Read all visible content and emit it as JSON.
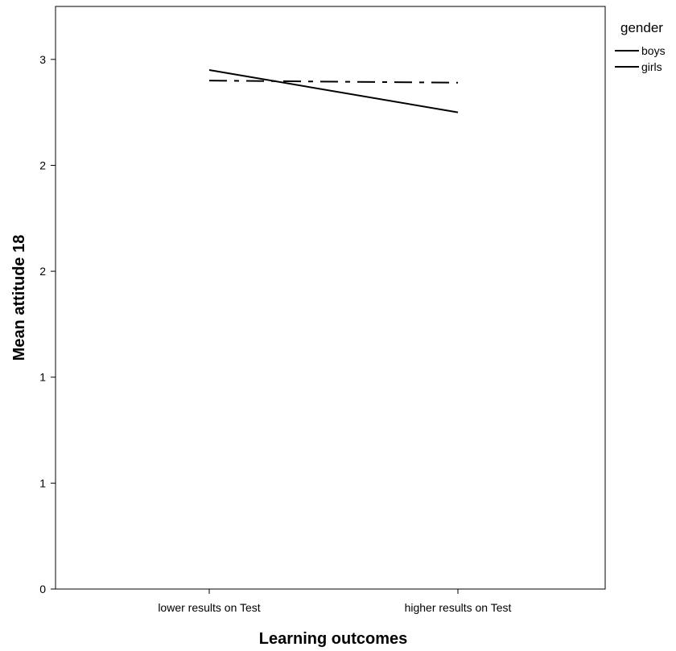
{
  "chart_data": {
    "type": "line",
    "title": "",
    "xlabel": "Learning outcomes",
    "ylabel": "Mean attitude 18",
    "categories": [
      "lower results on Test",
      "higher results on Test"
    ],
    "y_tick_labels": [
      "0",
      "1",
      "1",
      "2",
      "2",
      "3"
    ],
    "y_tick_values": [
      0,
      0.5,
      1,
      1.5,
      2,
      2.5
    ],
    "ylim": [
      0,
      2.75
    ],
    "grid": false,
    "legend": {
      "title": "gender",
      "placement": "right"
    },
    "series": [
      {
        "name": "boys",
        "values": [
          2.45,
          2.25
        ],
        "style": "solid"
      },
      {
        "name": "girls",
        "values": [
          2.4,
          2.39
        ],
        "style": "dash-dot"
      }
    ]
  }
}
